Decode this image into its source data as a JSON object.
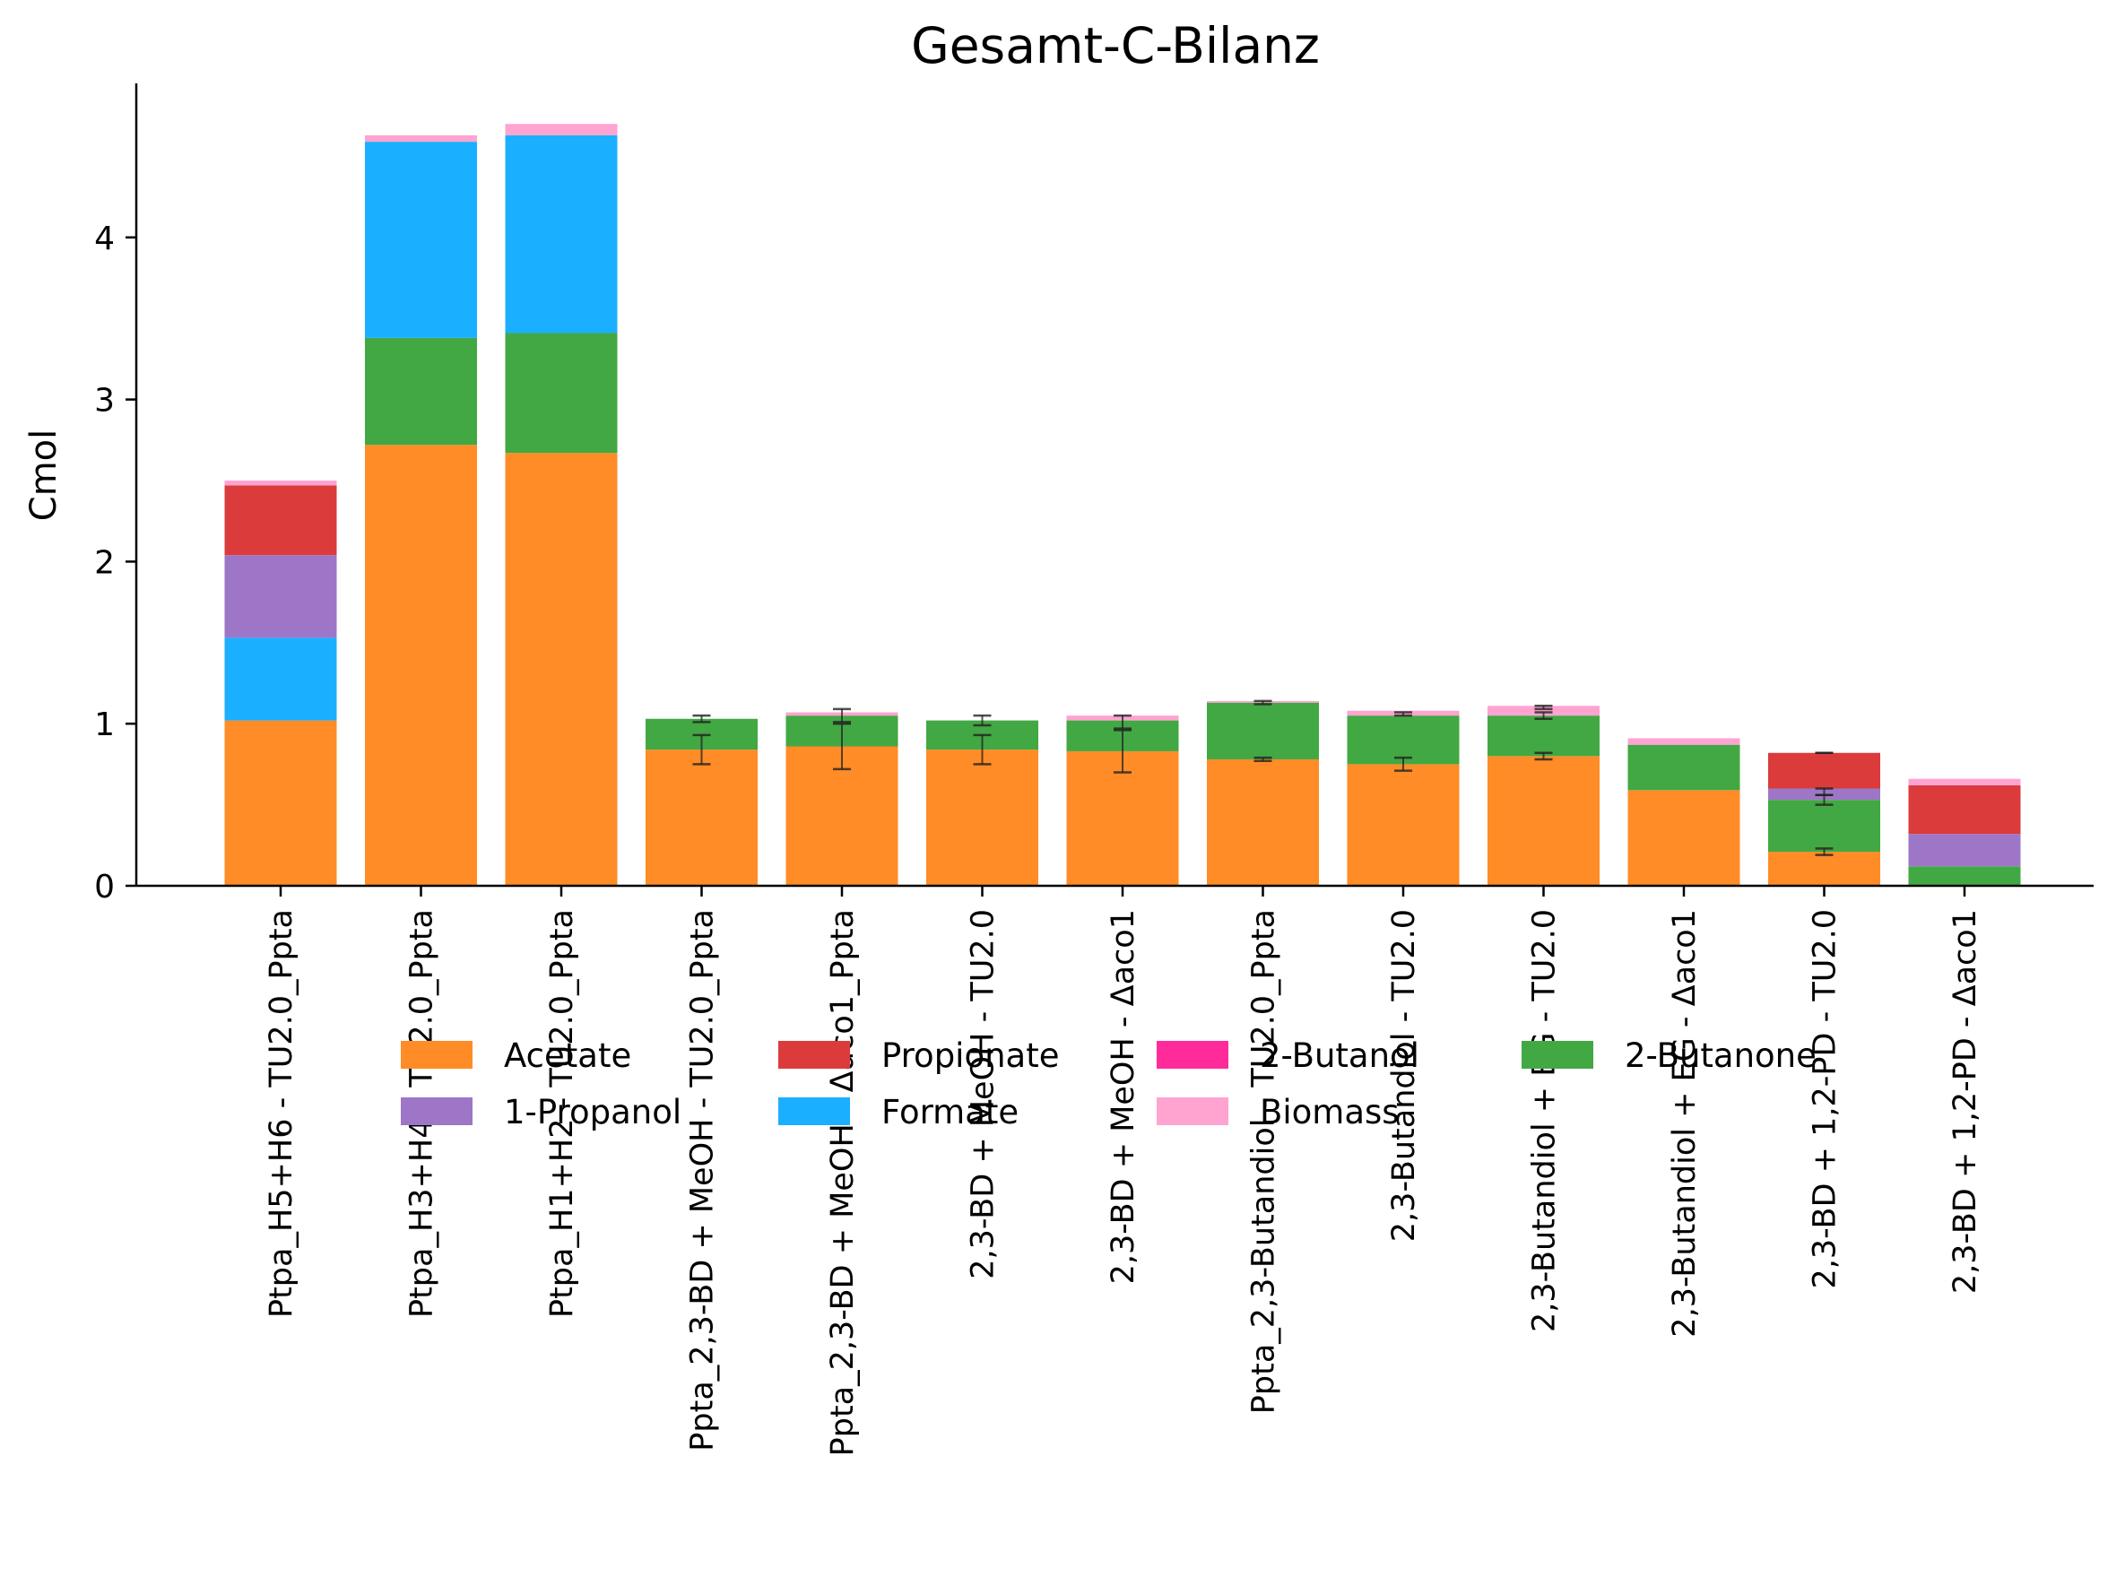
{
  "chart_data": {
    "type": "bar",
    "stacked": true,
    "title": "Gesamt-C-Bilanz",
    "xlabel": "",
    "ylabel": "Cmol",
    "ylim": [
      0,
      4.95
    ],
    "yticks": [
      0,
      1,
      2,
      3,
      4
    ],
    "grid": false,
    "legend_position": "bottom-center",
    "categories": [
      "Ptpa_H5+H6 - TU2.0_Ppta",
      "Ptpa_H3+H4 - TU2.0_Ppta",
      "Ptpa_H1+H2 - TU2.0_Ppta",
      "Ppta_2,3-BD + MeOH - TU2.0_Ppta",
      "Ppta_2,3-BD + MeOH - Δaco1_Ppta",
      "2,3-BD + MeOH - TU2.0",
      "2,3-BD + MeOH - Δaco1",
      "Ppta_2,3-Butandiol - TU2.0_Ppta",
      "2,3-Butandiol - TU2.0",
      "2,3-Butandiol + EG - TU2.0",
      "2,3-Butandiol + EG - Δaco1",
      "2,3-BD + 1,2-PD - TU2.0",
      "2,3-BD + 1,2-PD - Δaco1"
    ],
    "series": [
      {
        "name": "Acetate",
        "color": "#ff8c26",
        "values": [
          1.02,
          2.72,
          2.67,
          0.84,
          0.86,
          0.84,
          0.83,
          0.78,
          0.75,
          0.8,
          0.59,
          0.21,
          0.0
        ]
      },
      {
        "name": "1-Propanol",
        "color": "#9e76c7",
        "values": [
          0.51,
          0.0,
          0.0,
          0.0,
          0.0,
          0.0,
          0.0,
          0.0,
          0.0,
          0.0,
          0.0,
          0.07,
          0.2
        ]
      },
      {
        "name": "Propionate",
        "color": "#db3b3b",
        "values": [
          0.43,
          0.0,
          0.0,
          0.0,
          0.0,
          0.0,
          0.0,
          0.0,
          0.0,
          0.0,
          0.0,
          0.22,
          0.3
        ]
      },
      {
        "name": "Formate",
        "color": "#1ab0ff",
        "values": [
          0.51,
          1.21,
          1.22,
          0.0,
          0.0,
          0.0,
          0.0,
          0.0,
          0.0,
          0.0,
          0.0,
          0.0,
          0.0
        ]
      },
      {
        "name": "2-Butanol",
        "color": "#ff2b9b",
        "values": [
          0.0,
          0.0,
          0.0,
          0.0,
          0.0,
          0.0,
          0.0,
          0.0,
          0.0,
          0.0,
          0.0,
          0.0,
          0.0
        ]
      },
      {
        "name": "Biomass",
        "color": "#ffa3d1",
        "values": [
          0.03,
          0.04,
          0.07,
          0.0,
          0.02,
          0.0,
          0.03,
          0.01,
          0.03,
          0.06,
          0.04,
          0.0,
          0.04
        ]
      },
      {
        "name": "2-Butanone",
        "color": "#42a843",
        "values": [
          0.0,
          0.66,
          0.74,
          0.19,
          0.19,
          0.18,
          0.19,
          0.35,
          0.3,
          0.25,
          0.28,
          0.32,
          0.12
        ]
      }
    ],
    "stack_order": [
      "Acetate",
      "2-Butanone",
      "Formate",
      "1-Propanol",
      "Propionate",
      "2-Butanol",
      "Biomass"
    ],
    "error_bars": [
      {
        "category": 3,
        "value": 0.84,
        "err": 0.09
      },
      {
        "category": 3,
        "value": 1.03,
        "err": 0.02
      },
      {
        "category": 4,
        "value": 0.86,
        "err": 0.14
      },
      {
        "category": 4,
        "value": 1.05,
        "err": 0.04
      },
      {
        "category": 5,
        "value": 0.84,
        "err": 0.09
      },
      {
        "category": 5,
        "value": 1.02,
        "err": 0.03
      },
      {
        "category": 6,
        "value": 0.83,
        "err": 0.13
      },
      {
        "category": 6,
        "value": 1.01,
        "err": 0.04
      },
      {
        "category": 7,
        "value": 0.78,
        "err": 0.01
      },
      {
        "category": 7,
        "value": 1.13,
        "err": 0.01
      },
      {
        "category": 8,
        "value": 0.75,
        "err": 0.04
      },
      {
        "category": 8,
        "value": 1.06,
        "err": 0.01
      },
      {
        "category": 9,
        "value": 0.8,
        "err": 0.02
      },
      {
        "category": 9,
        "value": 1.05,
        "err": 0.02
      },
      {
        "category": 9,
        "value": 1.1,
        "err": 0.01
      },
      {
        "category": 11,
        "value": 0.21,
        "err": 0.02
      },
      {
        "category": 11,
        "value": 0.53,
        "err": 0.03
      },
      {
        "category": 11,
        "value": 0.58,
        "err": 0.02
      },
      {
        "category": 11,
        "value": 0.82,
        "err": 0.0
      }
    ],
    "legend": {
      "columns": 4,
      "entries": [
        "Acetate",
        "Propionate",
        "2-Butanol",
        "2-Butanone",
        "1-Propanol",
        "Formate",
        "Biomass"
      ]
    }
  }
}
